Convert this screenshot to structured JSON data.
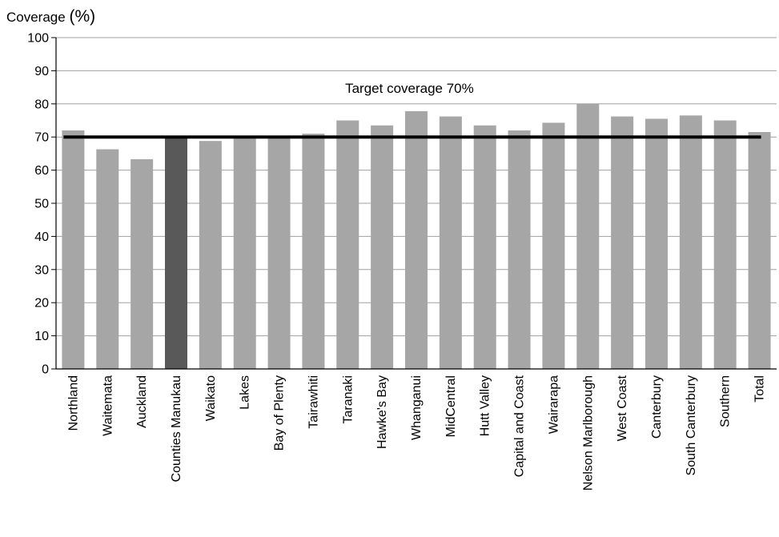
{
  "chart_data": {
    "type": "bar",
    "ylabel": "Coverage",
    "ylabel_unit": "(%)",
    "xlabel": "",
    "ylim": [
      0,
      100
    ],
    "yticks": [
      0,
      10,
      20,
      30,
      40,
      50,
      60,
      70,
      80,
      90,
      100
    ],
    "grid": true,
    "categories": [
      "Northland",
      "Waitemata",
      "Auckland",
      "Counties Manukau",
      "Waikato",
      "Lakes",
      "Bay of Plenty",
      "Tairawhiti",
      "Taranaki",
      "Hawke's Bay",
      "Whanganui",
      "MidCentral",
      "Hutt Valley",
      "Capital and Coast",
      "Wairarapa",
      "Nelson Marlborough",
      "West Coast",
      "Canterbury",
      "South Canterbury",
      "Southern",
      "Total"
    ],
    "values": [
      72,
      66.3,
      63.3,
      70.3,
      68.8,
      70,
      70,
      71,
      75,
      73.5,
      77.8,
      76.2,
      73.5,
      72,
      74.3,
      80,
      76.2,
      75.5,
      76.5,
      75,
      71.5
    ],
    "highlight_index": 3,
    "target": {
      "value": 70,
      "label": "Target coverage 70%"
    },
    "colors": {
      "bar": "#a6a6a6",
      "highlight": "#595959",
      "target_line": "#000000",
      "grid": "#a0a0a0"
    }
  }
}
